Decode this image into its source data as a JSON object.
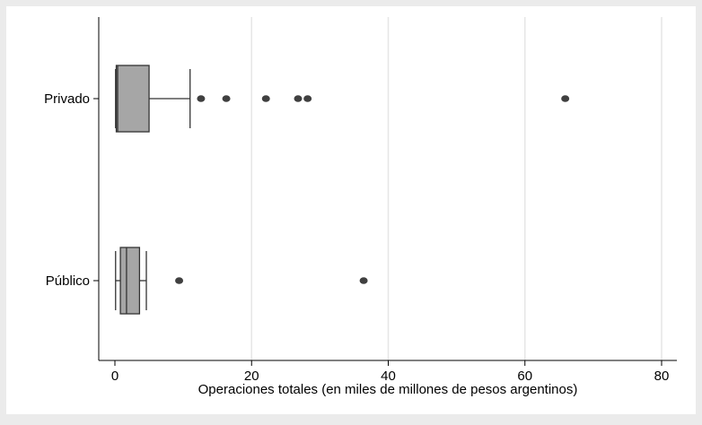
{
  "chart_data": {
    "type": "boxplot",
    "orientation": "horizontal",
    "xlabel": "Operaciones totales (en miles de millones de pesos argentinos)",
    "ylabel": "",
    "xlim": [
      0,
      80
    ],
    "xticks": [
      0,
      20,
      40,
      60,
      80
    ],
    "grid": "vertical",
    "categories": [
      "Privado",
      "Público"
    ],
    "boxes": [
      {
        "category": "Privado",
        "whisker_low": 0.1,
        "q1": 0.2,
        "median": 0.4,
        "q3": 5.0,
        "whisker_high": 11.0,
        "outliers": [
          12.6,
          16.3,
          22.1,
          26.8,
          28.2,
          65.9
        ]
      },
      {
        "category": "Público",
        "whisker_low": 0.1,
        "q1": 0.8,
        "median": 1.7,
        "q3": 3.6,
        "whisker_high": 4.6,
        "outliers": [
          9.4,
          36.4
        ]
      }
    ],
    "colors": {
      "background": "#ebebeb",
      "plot_background": "#ffffff",
      "box_fill": "#a6a6a6",
      "box_stroke": "#333333",
      "grid": "#e6e6e6",
      "outlier": "#404040"
    }
  }
}
